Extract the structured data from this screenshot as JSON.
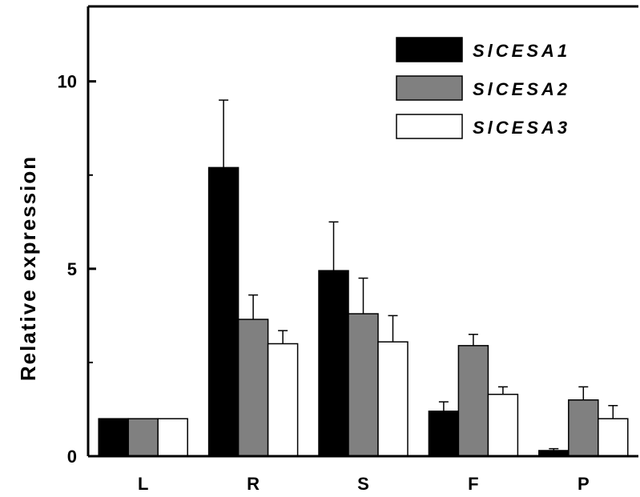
{
  "chart_data": {
    "type": "bar",
    "title": "",
    "xlabel": "",
    "ylabel": "Relative expression",
    "ylim": [
      0,
      12
    ],
    "yticks": [
      0,
      5,
      10
    ],
    "categories": [
      "L",
      "R",
      "S",
      "F",
      "P"
    ],
    "series": [
      {
        "name": "SlCESA1",
        "color": "#000000",
        "values": [
          1.0,
          7.7,
          4.95,
          1.2,
          0.15
        ],
        "errors": [
          0,
          1.8,
          1.3,
          0.25,
          0.05
        ]
      },
      {
        "name": "SlCESA2",
        "color": "#808080",
        "values": [
          1.0,
          3.65,
          3.8,
          2.95,
          1.5
        ],
        "errors": [
          0,
          0.65,
          0.95,
          0.3,
          0.35
        ]
      },
      {
        "name": "SlCESA3",
        "color": "#ffffff",
        "values": [
          1.0,
          3.0,
          3.05,
          1.65,
          1.0
        ],
        "errors": [
          0,
          0.35,
          0.7,
          0.2,
          0.35
        ]
      }
    ],
    "legend": "top-right",
    "grid": false
  }
}
